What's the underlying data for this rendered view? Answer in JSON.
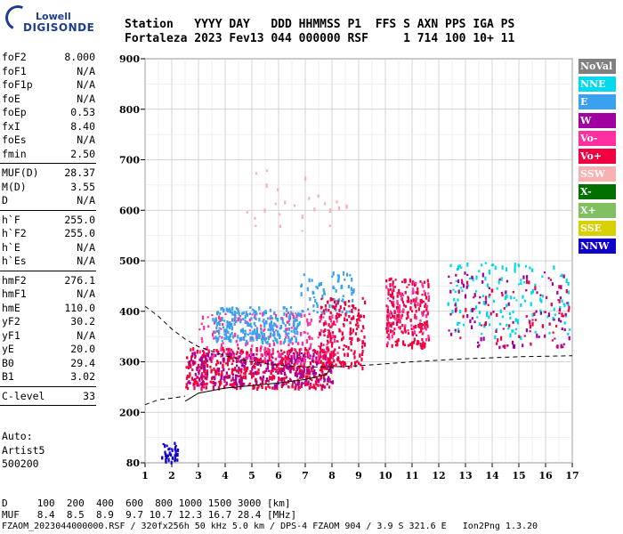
{
  "logo": {
    "line1": "Lowell",
    "line2": "DIGISONDE"
  },
  "header": {
    "line1": "Station   YYYY DAY   DDD HHMMSS P1  FFS S AXN PPS IGA PS",
    "line2": "Fortaleza 2023 Fev13 044 000000 RSF     1 714 100 10+ 11"
  },
  "params": [
    {
      "group": [
        {
          "name": "foF2",
          "value": "8.000"
        },
        {
          "name": "foF1",
          "value": "N/A"
        },
        {
          "name": "foF1p",
          "value": "N/A"
        },
        {
          "name": "foE",
          "value": "N/A"
        },
        {
          "name": "foEp",
          "value": "0.53"
        },
        {
          "name": "fxI",
          "value": "8.40"
        },
        {
          "name": "foEs",
          "value": "N/A"
        },
        {
          "name": "fmin",
          "value": "2.50"
        }
      ]
    },
    {
      "group": [
        {
          "name": "MUF(D)",
          "value": "28.37"
        },
        {
          "name": "M(D)",
          "value": "3.55"
        },
        {
          "name": "D",
          "value": "N/A"
        }
      ]
    },
    {
      "group": [
        {
          "name": "h`F",
          "value": "255.0"
        },
        {
          "name": "h`F2",
          "value": "255.0"
        },
        {
          "name": "h`E",
          "value": "N/A"
        },
        {
          "name": "h`Es",
          "value": "N/A"
        }
      ]
    },
    {
      "group": [
        {
          "name": "hmF2",
          "value": "276.1"
        },
        {
          "name": "hmF1",
          "value": "N/A"
        },
        {
          "name": "hmE",
          "value": "110.0"
        },
        {
          "name": "yF2",
          "value": "30.2"
        },
        {
          "name": "yF1",
          "value": "N/A"
        },
        {
          "name": "yE",
          "value": "20.0"
        },
        {
          "name": "B0",
          "value": "29.4"
        },
        {
          "name": "B1",
          "value": "3.02"
        }
      ]
    },
    {
      "group": [
        {
          "name": "C-level",
          "value": "33"
        }
      ]
    }
  ],
  "auto": {
    "l1": "Auto:",
    "l2": "Artist5",
    "l3": "500200"
  },
  "footer": {
    "d_row": "D     100  200  400  600  800 1000 1500 3000 [km]",
    "muf_row": "MUF   8.4  8.5  8.9  9.7 10.7 12.3 16.7 28.4 [MHz]",
    "file_row": "FZAOM_2023044000000.RSF / 320fx256h 50 kHz 5.0 km / DPS-4 FZAOM 904 / 3.9 S 321.6 E   Ion2Png 1.3.20"
  },
  "legend": [
    {
      "label": "NoVal",
      "color": "#808080"
    },
    {
      "label": "NNE",
      "color": "#00d8f0"
    },
    {
      "label": "E",
      "color": "#3aa0f0"
    },
    {
      "label": "W",
      "color": "#a000a0"
    },
    {
      "label": "Vo-",
      "color": "#ff2fa0"
    },
    {
      "label": "Vo+",
      "color": "#f00040"
    },
    {
      "label": "SSW",
      "color": "#f8b0b0"
    },
    {
      "label": "X-",
      "color": "#007000"
    },
    {
      "label": "X+",
      "color": "#80c060"
    },
    {
      "label": "SSE",
      "color": "#d8d000"
    },
    {
      "label": "NNW",
      "color": "#1000c8"
    }
  ],
  "chart_data": {
    "type": "scatter",
    "xlim": [
      1,
      17
    ],
    "ylim": [
      80,
      900
    ],
    "x_ticks": [
      "1",
      "2",
      "3",
      "4",
      "5",
      "6",
      "7",
      "8",
      "9",
      "10",
      "11",
      "12",
      "13",
      "14",
      "15",
      "16",
      "17"
    ],
    "y_ticks": [
      "80",
      "200",
      "300",
      "400",
      "500",
      "600",
      "700",
      "800",
      "900"
    ],
    "grid": true,
    "clusters": [
      {
        "x": [
          1.6,
          2.2
        ],
        "y": [
          80,
          130
        ],
        "color": "NNW",
        "density": 40
      },
      {
        "x": [
          2.5,
          8.0
        ],
        "y": [
          250,
          330
        ],
        "color": "Vo+",
        "density": 600
      },
      {
        "x": [
          2.6,
          8.0
        ],
        "y": [
          255,
          320
        ],
        "color": "W",
        "density": 200
      },
      {
        "x": [
          3.0,
          8.2
        ],
        "y": [
          300,
          400
        ],
        "color": "Vo-",
        "density": 200
      },
      {
        "x": [
          3.5,
          6.8
        ],
        "y": [
          340,
          410
        ],
        "color": "E",
        "density": 250
      },
      {
        "x": [
          6.8,
          8.8
        ],
        "y": [
          400,
          480
        ],
        "color": "E",
        "density": 70
      },
      {
        "x": [
          7.5,
          9.2
        ],
        "y": [
          290,
          430
        ],
        "color": "Vo+",
        "density": 180
      },
      {
        "x": [
          10.0,
          11.6
        ],
        "y": [
          330,
          470
        ],
        "color": "Vo+",
        "density": 200
      },
      {
        "x": [
          10.0,
          11.6
        ],
        "y": [
          340,
          460
        ],
        "color": "Vo-",
        "density": 60
      },
      {
        "x": [
          12.3,
          16.9
        ],
        "y": [
          350,
          500
        ],
        "color": "NNE",
        "density": 140
      },
      {
        "x": [
          12.3,
          16.9
        ],
        "y": [
          330,
          480
        ],
        "color": "W",
        "density": 90
      },
      {
        "x": [
          12.3,
          16.9
        ],
        "y": [
          330,
          470
        ],
        "color": "Vo+",
        "density": 60
      },
      {
        "x": [
          4.5,
          8.6
        ],
        "y": [
          560,
          690
        ],
        "color": "SSW",
        "density": 25
      }
    ],
    "profile_solid": {
      "x": [
        2.5,
        3.0,
        4.0,
        5.0,
        6.0,
        7.0,
        7.8,
        8.0
      ],
      "y": [
        222,
        238,
        248,
        253,
        258,
        265,
        275,
        295
      ]
    },
    "profile_dashed": {
      "x": [
        1.0,
        1.5,
        2.0,
        2.5,
        3.0,
        4.0,
        5.0,
        6.0,
        7.0,
        8.0,
        9.0,
        10.0,
        11.0,
        12.0,
        13.0,
        14.0,
        15.0,
        16.0,
        17.0
      ],
      "y": [
        410,
        390,
        365,
        345,
        330,
        312,
        300,
        293,
        290,
        290,
        292,
        296,
        300,
        303,
        306,
        308,
        310,
        311,
        312
      ]
    },
    "profile_lower_dashed": {
      "x": [
        1.0,
        1.5,
        2.0,
        2.5
      ],
      "y": [
        215,
        225,
        228,
        232
      ]
    }
  }
}
